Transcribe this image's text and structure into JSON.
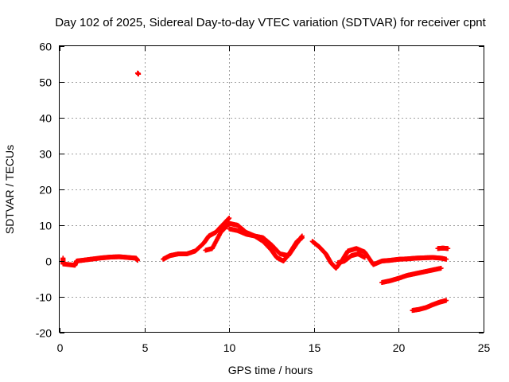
{
  "chart_data": {
    "type": "scatter",
    "title": "Day 102 of 2025, Sidereal Day-to-day VTEC variation (SDTVAR) for receiver cpnt",
    "xlabel": "GPS time / hours",
    "ylabel": "SDTVAR / TECUs",
    "xlim": [
      0,
      25
    ],
    "ylim": [
      -20,
      60
    ],
    "xticks": [
      0,
      5,
      10,
      15,
      20,
      25
    ],
    "yticks": [
      -20,
      -10,
      0,
      10,
      20,
      30,
      40,
      50,
      60
    ],
    "grid": true,
    "marker": "+",
    "color": "#ff0000",
    "series": [
      {
        "name": "SDTVAR",
        "segments": [
          {
            "x": [
              0.2,
              0.2,
              0.9,
              1.0,
              1.5,
              2.0,
              2.5,
              3.0,
              3.5,
              4.0,
              4.5,
              4.6
            ],
            "y": [
              0.8,
              -0.8,
              -1.2,
              0.0,
              0.3,
              0.6,
              0.9,
              1.1,
              1.2,
              1.0,
              0.8,
              0.2
            ]
          },
          {
            "x": [
              4.6,
              4.65
            ],
            "y": [
              52.5,
              52.2
            ]
          },
          {
            "x": [
              6.1,
              6.5,
              7.0,
              7.5,
              8.0,
              8.5,
              8.8,
              9.2,
              9.6,
              10.0
            ],
            "y": [
              0.5,
              1.5,
              2.0,
              2.0,
              2.8,
              5.0,
              7.0,
              8.0,
              10.0,
              12.0
            ]
          },
          {
            "x": [
              8.6,
              9.0,
              9.5,
              10.0,
              10.5,
              11.0,
              11.5,
              12.0,
              12.5,
              13.0,
              13.5,
              14.0,
              14.3
            ],
            "y": [
              3.0,
              3.5,
              8.0,
              10.5,
              10.0,
              8.0,
              7.0,
              6.5,
              4.5,
              2.0,
              1.5,
              5.0,
              7.0
            ]
          },
          {
            "x": [
              10.0,
              10.5,
              11.0,
              11.5,
              12.0,
              12.5,
              12.8,
              13.2,
              13.6,
              14.0,
              14.3
            ],
            "y": [
              9.0,
              8.5,
              7.5,
              7.0,
              5.5,
              3.0,
              1.0,
              0.0,
              2.5,
              5.5,
              6.5
            ]
          },
          {
            "x": [
              14.9,
              15.3,
              15.7,
              16.0,
              16.3,
              16.7,
              17.0,
              17.5,
              18.0,
              18.5
            ],
            "y": [
              5.5,
              4.0,
              2.0,
              -0.5,
              -2.0,
              0.5,
              2.8,
              3.5,
              2.5,
              -1.0
            ]
          },
          {
            "x": [
              16.4,
              16.8,
              17.2,
              17.6,
              18.0
            ],
            "y": [
              -0.5,
              0.0,
              1.5,
              2.0,
              1.0
            ]
          },
          {
            "x": [
              18.5,
              19.0,
              19.5,
              20.0,
              20.5,
              21.0,
              21.5,
              22.0,
              22.5,
              22.8
            ],
            "y": [
              -1.0,
              0.0,
              0.2,
              0.5,
              0.6,
              0.8,
              0.9,
              1.0,
              0.8,
              0.5
            ]
          },
          {
            "x": [
              19.0,
              19.5,
              20.0,
              20.5,
              21.0,
              21.5,
              22.0,
              22.5
            ],
            "y": [
              -6.0,
              -5.5,
              -4.8,
              -4.0,
              -3.5,
              -3.0,
              -2.5,
              -2.0
            ]
          },
          {
            "x": [
              22.3,
              22.6,
              22.9
            ],
            "y": [
              3.5,
              3.6,
              3.5
            ]
          },
          {
            "x": [
              20.8,
              21.2,
              21.6,
              22.0,
              22.4,
              22.8
            ],
            "y": [
              -13.8,
              -13.5,
              -13.0,
              -12.2,
              -11.5,
              -11.0
            ]
          }
        ]
      }
    ]
  }
}
